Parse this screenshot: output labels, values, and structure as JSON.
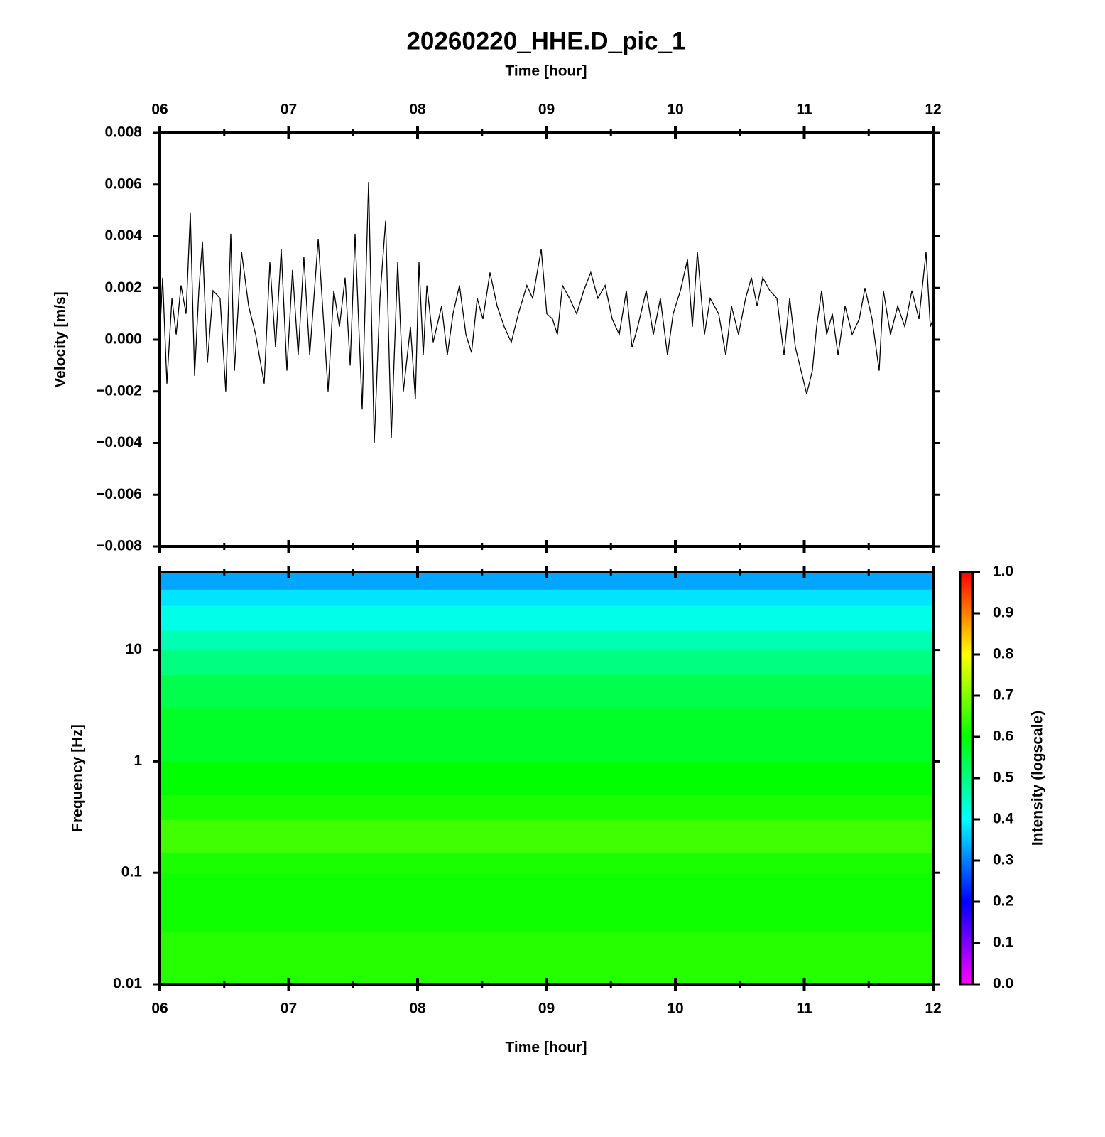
{
  "chart_data": [
    {
      "type": "line",
      "title": "20260220_HHE.D_pic_1",
      "xlabel": "Time [hour]",
      "ylabel": "Velocity [m/s]",
      "color": "#000000",
      "xlim": [
        6,
        12
      ],
      "xticks": [
        {
          "value": 6,
          "label": "06"
        },
        {
          "value": 7,
          "label": "07"
        },
        {
          "value": 8,
          "label": "08"
        },
        {
          "value": 9,
          "label": "09"
        },
        {
          "value": 10,
          "label": "10"
        },
        {
          "value": 11,
          "label": "11"
        },
        {
          "value": 12,
          "label": "12"
        }
      ],
      "xminorticks": [
        6.5,
        7.5,
        8.5,
        9.5,
        10.5,
        11.5
      ],
      "ylim": [
        -0.008,
        0.008
      ],
      "yticks": [
        {
          "value": 0.008,
          "label": "0.008"
        },
        {
          "value": 0.006,
          "label": "0.006"
        },
        {
          "value": 0.004,
          "label": "0.004"
        },
        {
          "value": 0.002,
          "label": "0.002"
        },
        {
          "value": 0,
          "label": "0.000"
        },
        {
          "value": -0.002,
          "label": "−0.002"
        },
        {
          "value": -0.004,
          "label": "−0.004"
        },
        {
          "value": -0.006,
          "label": "−0.006"
        },
        {
          "value": -0.008,
          "label": "−0.008"
        }
      ],
      "x": [
        6.0,
        6.022,
        6.055,
        6.094,
        6.127,
        6.165,
        6.204,
        6.237,
        6.27,
        6.303,
        6.331,
        6.369,
        6.413,
        6.468,
        6.512,
        6.551,
        6.579,
        6.634,
        6.689,
        6.744,
        6.81,
        6.854,
        6.898,
        6.942,
        6.986,
        7.03,
        7.074,
        7.118,
        7.163,
        7.229,
        7.306,
        7.35,
        7.394,
        7.438,
        7.477,
        7.515,
        7.57,
        7.62,
        7.664,
        7.708,
        7.752,
        7.796,
        7.846,
        7.89,
        7.945,
        7.983,
        8.011,
        8.044,
        8.072,
        8.121,
        8.187,
        8.231,
        8.275,
        8.325,
        8.375,
        8.419,
        8.463,
        8.507,
        8.562,
        8.617,
        8.672,
        8.727,
        8.782,
        8.848,
        8.893,
        8.959,
        9.003,
        9.047,
        9.085,
        9.124,
        9.179,
        9.234,
        9.289,
        9.344,
        9.399,
        9.455,
        9.51,
        9.565,
        9.62,
        9.664,
        9.708,
        9.774,
        9.829,
        9.884,
        9.939,
        9.983,
        10.039,
        10.094,
        10.132,
        10.171,
        10.226,
        10.27,
        10.336,
        10.391,
        10.435,
        10.49,
        10.545,
        10.59,
        10.634,
        10.678,
        10.733,
        10.788,
        10.843,
        10.887,
        10.931,
        10.975,
        11.019,
        11.063,
        11.096,
        11.135,
        11.174,
        11.218,
        11.262,
        11.317,
        11.372,
        11.427,
        11.471,
        11.526,
        11.581,
        11.614,
        11.669,
        11.725,
        11.78,
        11.835,
        11.89,
        11.945,
        11.978,
        12.0
      ],
      "values": [
        0.0002,
        0.0024,
        -0.0017,
        0.0016,
        0.0002,
        0.0021,
        0.001,
        0.0049,
        -0.0014,
        0.0019,
        0.0038,
        -0.0009,
        0.0019,
        0.0016,
        -0.002,
        0.0041,
        -0.0012,
        0.0034,
        0.0013,
        0.0002,
        -0.0017,
        0.003,
        -0.0003,
        0.0035,
        -0.0012,
        0.0027,
        -0.0006,
        0.0032,
        -0.0006,
        0.0039,
        -0.002,
        0.0019,
        0.0005,
        0.0024,
        -0.001,
        0.0041,
        -0.0027,
        0.0061,
        -0.004,
        0.0016,
        0.0046,
        -0.0038,
        0.003,
        -0.002,
        0.0005,
        -0.0023,
        0.003,
        -0.0006,
        0.0021,
        -0.0001,
        0.0013,
        -0.0006,
        0.001,
        0.0021,
        0.0002,
        -0.0005,
        0.0016,
        0.0008,
        0.0026,
        0.0013,
        0.0005,
        -0.0001,
        0.001,
        0.0021,
        0.0016,
        0.0035,
        0.001,
        0.0008,
        0.0002,
        0.0021,
        0.0016,
        0.001,
        0.0019,
        0.0026,
        0.0016,
        0.0021,
        0.0008,
        0.0002,
        0.0019,
        -0.0003,
        0.0005,
        0.0019,
        0.0002,
        0.0016,
        -0.0006,
        0.001,
        0.0019,
        0.0031,
        0.0005,
        0.0034,
        0.0002,
        0.0016,
        0.001,
        -0.0006,
        0.0013,
        0.0002,
        0.0016,
        0.0024,
        0.0013,
        0.0024,
        0.0019,
        0.0016,
        -0.0006,
        0.0016,
        -0.0003,
        -0.0012,
        -0.0021,
        -0.0012,
        0.0005,
        0.0019,
        0.0002,
        0.001,
        -0.0006,
        0.0013,
        0.0002,
        0.0008,
        0.002,
        0.0008,
        -0.0012,
        0.0019,
        0.0002,
        0.0013,
        0.0005,
        0.0019,
        0.0008,
        0.0034,
        0.0005,
        0.0008
      ]
    },
    {
      "type": "spectrogram",
      "xlabel": "Time [hour]",
      "ylabel": "Frequency [Hz]",
      "log_y": true,
      "xlim": [
        6,
        12
      ],
      "xticks": [
        {
          "value": 6,
          "label": "06"
        },
        {
          "value": 7,
          "label": "07"
        },
        {
          "value": 8,
          "label": "08"
        },
        {
          "value": 9,
          "label": "09"
        },
        {
          "value": 10,
          "label": "10"
        },
        {
          "value": 11,
          "label": "11"
        },
        {
          "value": 12,
          "label": "12"
        }
      ],
      "xminorticks": [
        6.5,
        7.5,
        8.5,
        9.5,
        10.5,
        11.5
      ],
      "ylim": [
        0.01,
        50
      ],
      "yticks": [
        0.01,
        0.1,
        1,
        10
      ],
      "freq_bins": [
        0.01,
        0.03,
        0.1,
        0.15,
        0.3,
        0.5,
        1,
        3,
        6,
        10,
        15,
        25,
        35,
        50
      ],
      "intensity": [
        0.63,
        0.61,
        0.62,
        0.65,
        0.62,
        0.6,
        0.57,
        0.54,
        0.5,
        0.46,
        0.42,
        0.38,
        0.33
      ],
      "colorbar_label": "Intensity (logscale)",
      "clim": [
        0,
        1
      ],
      "colorbar_ticks": [
        {
          "value": 0,
          "label": "0.0"
        },
        {
          "value": 0.1,
          "label": "0.1"
        },
        {
          "value": 0.2,
          "label": "0.2"
        },
        {
          "value": 0.3,
          "label": "0.3"
        },
        {
          "value": 0.4,
          "label": "0.4"
        },
        {
          "value": 0.5,
          "label": "0.5"
        },
        {
          "value": 0.6,
          "label": "0.6"
        },
        {
          "value": 0.7,
          "label": "0.7"
        },
        {
          "value": 0.8,
          "label": "0.8"
        },
        {
          "value": 0.9,
          "label": "0.9"
        },
        {
          "value": 1,
          "label": "1.0"
        }
      ],
      "colormap": [
        {
          "value": 0,
          "color": "#ff00ff"
        },
        {
          "value": 0.2,
          "color": "#0000ff"
        },
        {
          "value": 0.4,
          "color": "#00ffff"
        },
        {
          "value": 0.6,
          "color": "#00ff00"
        },
        {
          "value": 0.8,
          "color": "#ffff00"
        },
        {
          "value": 1,
          "color": "#ff0000"
        }
      ]
    }
  ]
}
